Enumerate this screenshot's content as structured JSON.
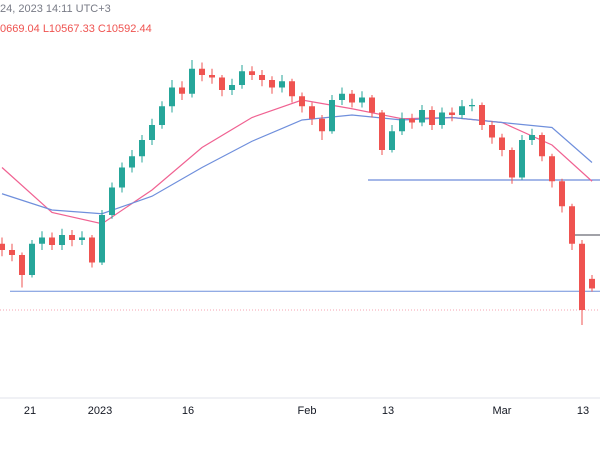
{
  "chart_data": {
    "type": "candlestick",
    "header": {
      "datetime": "24, 2023 14:11 UTC+3",
      "ohlc": "0669.04 L10567.33 C10592.44"
    },
    "up_color": "#26a69a",
    "down_color": "#ef5350",
    "ylim": [
      9700,
      12500
    ],
    "xlim": [
      -0.2,
      59.8
    ],
    "xticks": [
      {
        "value": 2.8,
        "label": "21"
      },
      {
        "value": 9.8,
        "label": "2023"
      },
      {
        "value": 18.6,
        "label": "16"
      },
      {
        "value": 30.5,
        "label": "Feb"
      },
      {
        "value": 38.6,
        "label": "13"
      },
      {
        "value": 50,
        "label": "Mar"
      },
      {
        "value": 58.1,
        "label": "13"
      }
    ],
    "open": [
      10950,
      10900,
      10860,
      10700,
      10950,
      11000,
      10940,
      11020,
      10980,
      11000,
      10800,
      11180,
      11400,
      11560,
      11650,
      11780,
      11900,
      12050,
      12200,
      12150,
      12350,
      12300,
      12280,
      12180,
      12220,
      12330,
      12300,
      12260,
      12200,
      12250,
      12130,
      12050,
      11950,
      11850,
      12100,
      12150,
      12080,
      12120,
      12000,
      11700,
      11850,
      11950,
      11920,
      12020,
      11900,
      12000,
      11980,
      12050,
      12060,
      11900,
      11800,
      11700,
      11480,
      11780,
      11820,
      11650,
      11450,
      11250,
      10950,
      10669.04
    ],
    "high": [
      11000,
      10950,
      10880,
      10980,
      11050,
      11040,
      11070,
      11060,
      11050,
      11020,
      11220,
      11440,
      11600,
      11700,
      11820,
      11950,
      12090,
      12260,
      12250,
      12420,
      12400,
      12350,
      12300,
      12270,
      12380,
      12370,
      12340,
      12290,
      12300,
      12270,
      12160,
      12080,
      11980,
      12140,
      12200,
      12180,
      12170,
      12140,
      12020,
      11900,
      12000,
      11990,
      12060,
      12050,
      12040,
      12040,
      12100,
      12110,
      12080,
      11930,
      11830,
      11720,
      11820,
      11870,
      11840,
      11670,
      11470,
      11270,
      10980,
      10700
    ],
    "low": [
      10850,
      10810,
      10600,
      10680,
      10900,
      10900,
      10900,
      10930,
      10940,
      10760,
      10780,
      11150,
      11360,
      11520,
      11600,
      11740,
      11870,
      12000,
      12100,
      12120,
      12250,
      12230,
      12130,
      12140,
      12190,
      12260,
      12210,
      12150,
      12160,
      12080,
      12000,
      11900,
      11780,
      11830,
      12060,
      12040,
      12040,
      11960,
      11660,
      11680,
      11820,
      11870,
      11890,
      11860,
      11870,
      11930,
      11950,
      12010,
      11860,
      11750,
      11650,
      11430,
      11460,
      11740,
      11610,
      11400,
      11200,
      10900,
      10300,
      10567.33
    ],
    "close": [
      10900,
      10860,
      10700,
      10950,
      11000,
      10940,
      11020,
      10980,
      11000,
      10800,
      11180,
      11400,
      11560,
      11650,
      11780,
      11900,
      12050,
      12200,
      12150,
      12350,
      12300,
      12280,
      12180,
      12220,
      12330,
      12300,
      12260,
      12200,
      12250,
      12130,
      12050,
      11950,
      11850,
      12100,
      12150,
      12080,
      12120,
      12000,
      11700,
      11850,
      11950,
      11920,
      12020,
      11900,
      12000,
      11980,
      12050,
      12060,
      11900,
      11800,
      11700,
      11480,
      11780,
      11820,
      11650,
      11450,
      11250,
      10950,
      10420,
      10592.44
    ],
    "lines": [
      {
        "color": "#f06292",
        "x": [
          0,
          5,
          10,
          15,
          20,
          25,
          30,
          35,
          40,
          45,
          50,
          55,
          59
        ],
        "values": [
          11560,
          11200,
          11110,
          11380,
          11720,
          11960,
          12100,
          12030,
          11950,
          11960,
          11920,
          11740,
          11450
        ]
      },
      {
        "color": "#6f8fdc",
        "x": [
          0,
          5,
          10,
          15,
          20,
          25,
          30,
          35,
          40,
          45,
          50,
          55,
          59
        ],
        "values": [
          11350,
          11220,
          11190,
          11330,
          11560,
          11770,
          11940,
          11980,
          11940,
          11960,
          11920,
          11880,
          11600
        ]
      }
    ],
    "levels": [
      {
        "value": 10570,
        "start": 0.8,
        "color": "#6f8fdc"
      },
      {
        "value": 11460,
        "start": 36.6,
        "color": "#4a6fd0"
      },
      {
        "value": 11020,
        "start": 57.3,
        "color": "#434651"
      },
      {
        "value": 10420,
        "start": -0.2,
        "color": "#f4a3b0",
        "dash": true
      }
    ]
  }
}
